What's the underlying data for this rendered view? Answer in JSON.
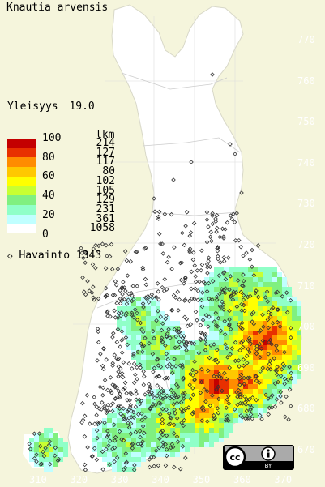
{
  "title": "Knautia arvensis",
  "frequency": {
    "label": "Yleisyys",
    "value": "19.0"
  },
  "legend": {
    "count_header": "lkm",
    "percent_labels": [
      "100",
      "80",
      "60",
      "40",
      "20",
      "0"
    ],
    "bins": [
      {
        "color": "#c40000",
        "count": "214"
      },
      {
        "color": "#e83000",
        "count": "127"
      },
      {
        "color": "#ff8c00",
        "count": "117"
      },
      {
        "color": "#ffc800",
        "count": "80"
      },
      {
        "color": "#ffff00",
        "count": "102"
      },
      {
        "color": "#c8ff32",
        "count": "105"
      },
      {
        "color": "#80f080",
        "count": "129"
      },
      {
        "color": "#90ffc8",
        "count": "231"
      },
      {
        "color": "#c0ffff",
        "count": "361"
      },
      {
        "color": "#ffffff",
        "count": "1058"
      }
    ]
  },
  "observations": {
    "label": "Havainto",
    "value": "1343",
    "marker_icon": "diamond-marker"
  },
  "grid_y_labels": [
    "770",
    "760",
    "750",
    "740",
    "730",
    "720",
    "710",
    "700",
    "690",
    "680",
    "670"
  ],
  "grid_x_labels": [
    "310",
    "320",
    "330",
    "340",
    "350",
    "360",
    "370"
  ],
  "license_badge": {
    "text": "BY",
    "icons": [
      "cc-icon",
      "person-icon"
    ]
  },
  "colors": {
    "background": "#f5f5dc",
    "land": "#ffffff",
    "border": "#bbbbbb"
  }
}
